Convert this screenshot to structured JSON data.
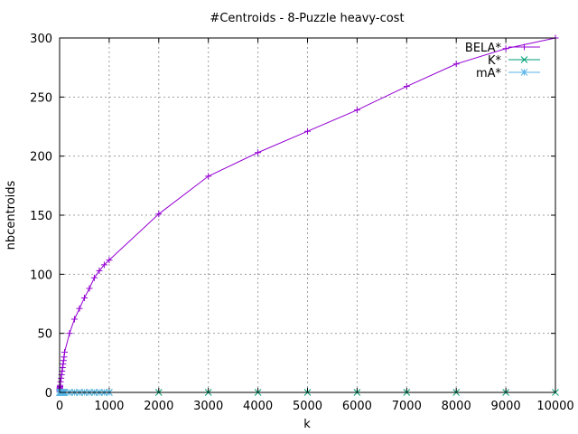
{
  "chart_data": {
    "type": "line",
    "title": "#Centroids - 8-Puzzle heavy-cost",
    "xlabel": "k",
    "ylabel": "nbcentroids",
    "xlim": [
      0,
      10000
    ],
    "ylim": [
      0,
      300
    ],
    "xticks": [
      0,
      1000,
      2000,
      3000,
      4000,
      5000,
      6000,
      7000,
      8000,
      9000,
      10000
    ],
    "yticks": [
      0,
      50,
      100,
      150,
      200,
      250,
      300
    ],
    "grid": true,
    "legend_position": "top-right",
    "series": [
      {
        "name": "BELA*",
        "color": "#9400d3",
        "marker": "plus",
        "x": [
          1,
          2,
          3,
          4,
          5,
          6,
          7,
          8,
          9,
          10,
          20,
          30,
          40,
          50,
          60,
          70,
          80,
          90,
          100,
          200,
          300,
          400,
          500,
          600,
          700,
          800,
          900,
          1000,
          2000,
          3000,
          4000,
          5000,
          6000,
          7000,
          8000,
          9000,
          10000
        ],
        "values": [
          1,
          2,
          3,
          3,
          4,
          4,
          5,
          5,
          5,
          6,
          9,
          12,
          15,
          18,
          21,
          24,
          27,
          30,
          34,
          50,
          62,
          71,
          80,
          88,
          97,
          103,
          108,
          112,
          151,
          183,
          203,
          221,
          239,
          259,
          278,
          291,
          300
        ]
      },
      {
        "name": "K*",
        "color": "#009e73",
        "marker": "cross",
        "x": [
          1,
          2,
          3,
          4,
          5,
          6,
          7,
          8,
          9,
          10,
          20,
          30,
          40,
          50,
          60,
          70,
          80,
          90,
          100,
          200,
          300,
          400,
          500,
          600,
          700,
          800,
          900,
          1000,
          2000,
          3000,
          4000,
          5000,
          6000,
          7000,
          8000,
          9000,
          10000
        ],
        "values": [
          0,
          0,
          0,
          0,
          0,
          0,
          0,
          0,
          0,
          0,
          0,
          0,
          0,
          0,
          0,
          0,
          0,
          0,
          0,
          0,
          0,
          0,
          0,
          0,
          0,
          0,
          0,
          0,
          0,
          0,
          0,
          0,
          0,
          0,
          0,
          0,
          0
        ]
      },
      {
        "name": "mA*",
        "color": "#56b4e9",
        "marker": "star",
        "x": [
          1,
          2,
          3,
          4,
          5,
          6,
          7,
          8,
          9,
          10,
          20,
          30,
          40,
          50,
          60,
          70,
          80,
          90,
          100,
          200,
          300,
          400,
          500,
          600,
          700,
          800,
          900,
          1000
        ],
        "values": [
          0,
          0,
          0,
          0,
          0,
          0,
          0,
          0,
          0,
          0,
          0,
          0,
          0,
          0,
          0,
          0,
          0,
          0,
          0,
          0,
          0,
          0,
          0,
          0,
          0,
          0,
          0,
          0
        ]
      }
    ]
  }
}
